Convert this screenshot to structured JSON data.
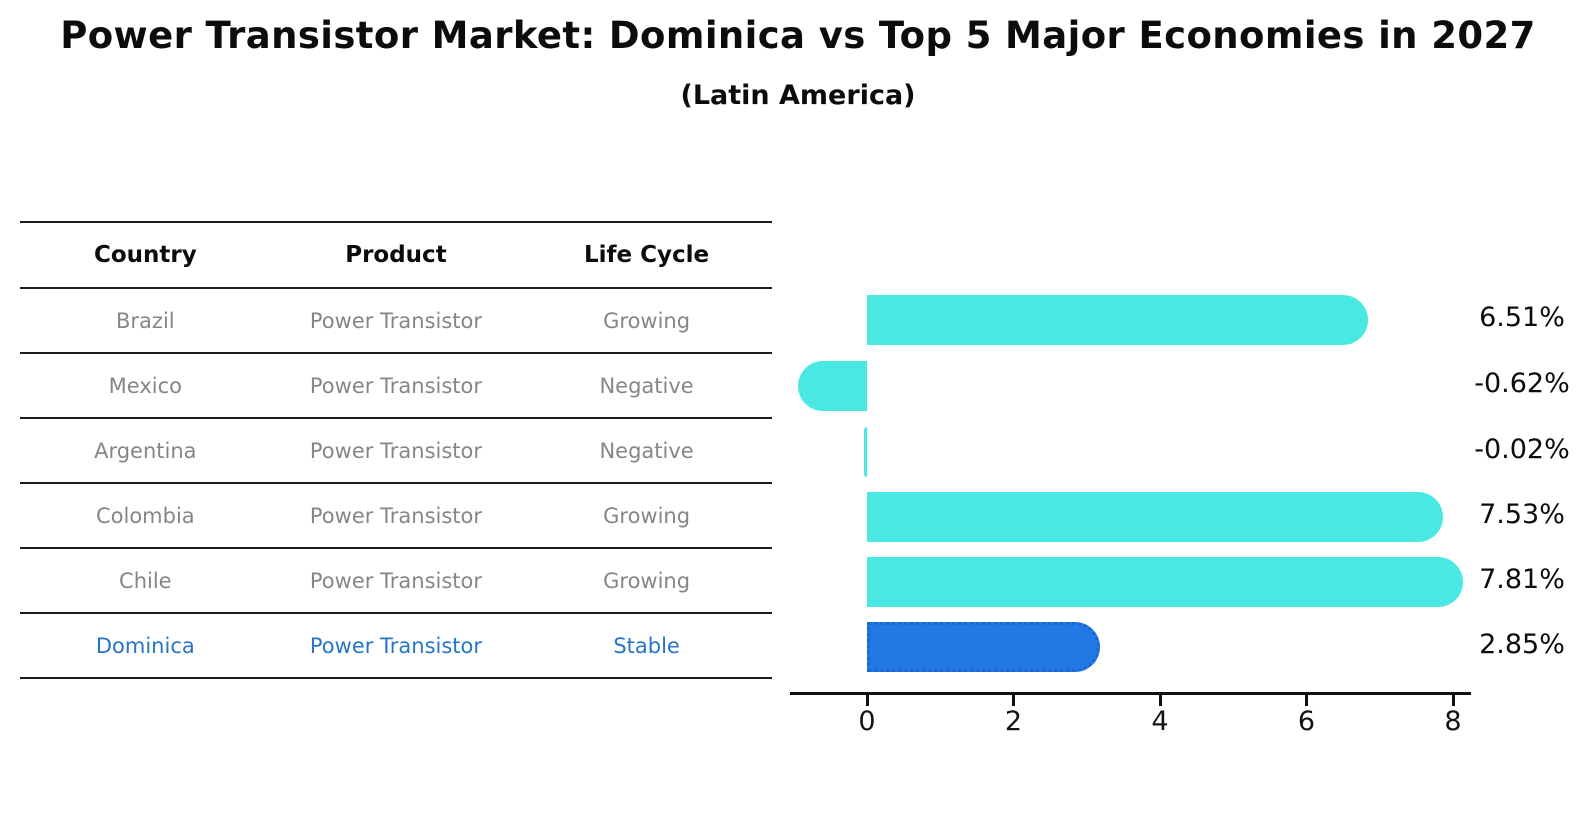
{
  "title": "Power Transistor Market: Dominica vs Top 5 Major Economies in 2027",
  "subtitle": "(Latin America)",
  "table": {
    "headers": [
      "Country",
      "Product",
      "Life Cycle"
    ],
    "rows": [
      {
        "country": "Brazil",
        "product": "Power Transistor",
        "life_cycle": "Growing",
        "highlight": false
      },
      {
        "country": "Mexico",
        "product": "Power Transistor",
        "life_cycle": "Negative",
        "highlight": false
      },
      {
        "country": "Argentina",
        "product": "Power Transistor",
        "life_cycle": "Negative",
        "highlight": false
      },
      {
        "country": "Colombia",
        "product": "Power Transistor",
        "life_cycle": "Growing",
        "highlight": false
      },
      {
        "country": "Chile",
        "product": "Power Transistor",
        "life_cycle": "Growing",
        "highlight": false
      },
      {
        "country": "Dominica",
        "product": "Power Transistor",
        "life_cycle": "Stable",
        "highlight": true
      }
    ]
  },
  "chart_data": {
    "type": "bar",
    "orientation": "horizontal",
    "title": "Power Transistor Market: Dominica vs Top 5 Major Economies in 2027",
    "subtitle": "(Latin America)",
    "categories": [
      "Brazil",
      "Mexico",
      "Argentina",
      "Colombia",
      "Chile",
      "Dominica"
    ],
    "values": [
      6.51,
      -0.62,
      -0.02,
      7.53,
      7.81,
      2.85
    ],
    "value_labels": [
      "6.51%",
      "-0.62%",
      "-0.02%",
      "7.53%",
      "7.81%",
      "2.85%"
    ],
    "xticks": [
      0,
      2,
      4,
      6,
      8
    ],
    "xlim": [
      -1.1,
      8.25
    ],
    "grid": false,
    "legend": false,
    "bar_color": "#4AE8E2",
    "highlight_bar_color": "#2278E4",
    "highlight_border_color": "#1C66CC",
    "highlight_text_color": "#2676C8",
    "highlight_index": 5
  }
}
